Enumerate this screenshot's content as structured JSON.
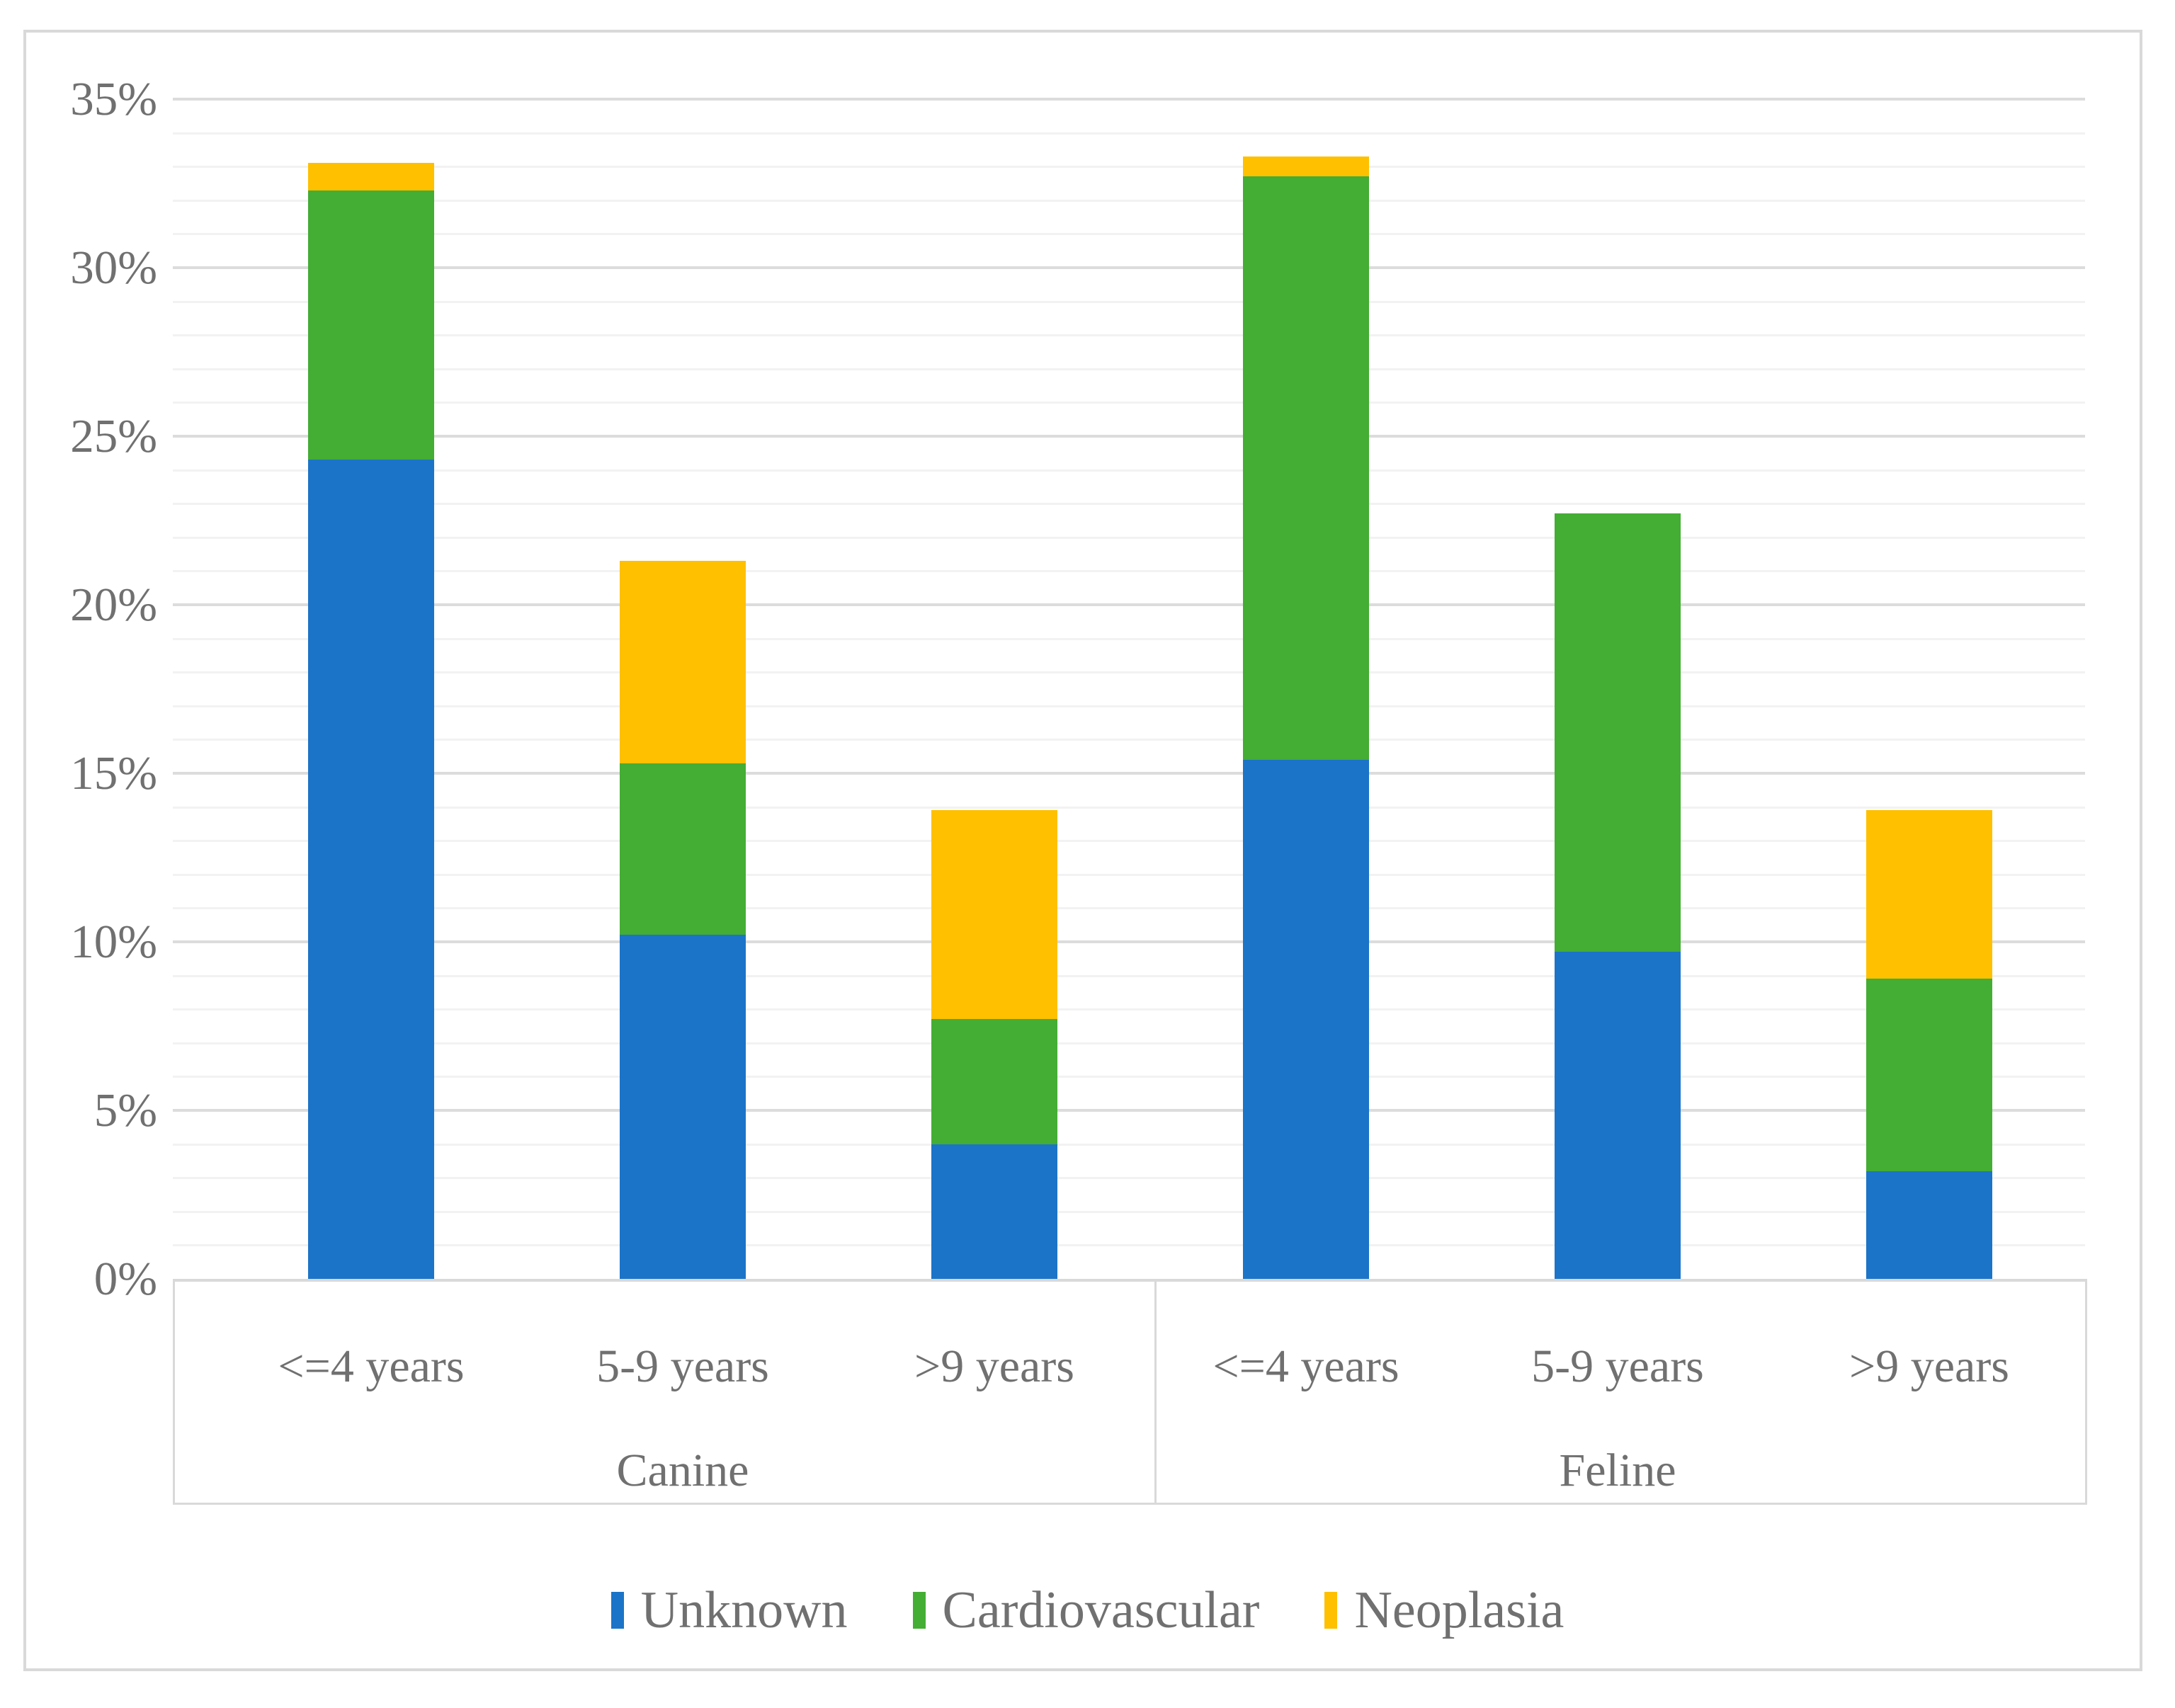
{
  "chart_data": {
    "type": "bar",
    "stacked": true,
    "unit": "percent",
    "title": "",
    "xlabel": "",
    "ylabel": "",
    "ylim": [
      0,
      35
    ],
    "grid": "horizontal, minor every 1%, major every 5%",
    "legend_position": "bottom",
    "y_ticks": [
      "0%",
      "5%",
      "10%",
      "15%",
      "20%",
      "25%",
      "30%",
      "35%"
    ],
    "x_groups": [
      {
        "label": "Canine",
        "categories": [
          "<=4 years",
          "5-9 years",
          ">9 years"
        ]
      },
      {
        "label": "Feline",
        "categories": [
          "<=4 years",
          "5-9 years",
          ">9 years"
        ]
      }
    ],
    "category_labels_flat": [
      "<=4 years",
      "5-9 years",
      ">9 years",
      "<=4 years",
      "5-9 years",
      ">9 years"
    ],
    "series": [
      {
        "name": "Unknown",
        "color": "#1B74C8",
        "values": [
          24.3,
          10.2,
          4.0,
          15.4,
          9.7,
          3.2
        ]
      },
      {
        "name": "Cardiovascular",
        "color": "#44AD34",
        "values": [
          8.0,
          5.1,
          3.7,
          17.3,
          13.0,
          5.7
        ]
      },
      {
        "name": "Neoplasia",
        "color": "#FFC000",
        "values": [
          0.8,
          6.0,
          6.2,
          0.6,
          0,
          5.0
        ]
      }
    ],
    "stack_totals": [
      33.1,
      21.3,
      13.9,
      33.3,
      22.7,
      13.9
    ]
  },
  "legend": {
    "items": [
      {
        "label": "Unknown",
        "color": "#1B74C8"
      },
      {
        "label": "Cardiovascular",
        "color": "#44AD34"
      },
      {
        "label": "Neoplasia",
        "color": "#FFC000"
      }
    ]
  },
  "colors": {
    "major_gridline": "#DCDCDC",
    "minor_gridline": "#F2F2F2",
    "axis_line": "#D9D9D9",
    "text": "#707070",
    "frame_border": "#D9D9D9",
    "background": "#FFFFFF"
  }
}
